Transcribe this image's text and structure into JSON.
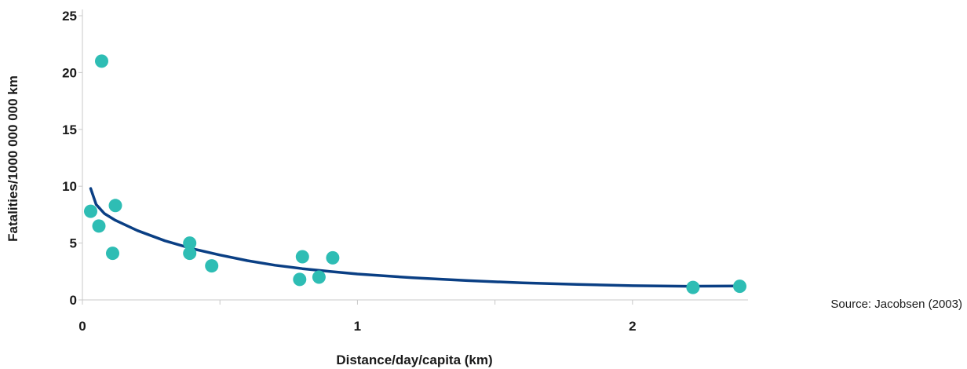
{
  "chart_data": {
    "type": "scatter",
    "xlabel": "Distance/day/capita (km)",
    "ylabel": "Fatalities/1000 000 000 km",
    "xlim": [
      0,
      2.42
    ],
    "ylim": [
      0,
      25
    ],
    "x_ticks": [
      0,
      1,
      2
    ],
    "x_tick_labels": [
      "0",
      "1",
      "2"
    ],
    "x_minor_ticks": [
      0.5,
      1.5
    ],
    "y_ticks": [
      0,
      5,
      10,
      15,
      20,
      25
    ],
    "y_tick_labels": [
      "0",
      "5",
      "10",
      "15",
      "20",
      "25"
    ],
    "grid": false,
    "source": "Source: Jacobsen (2003)",
    "colors": {
      "points": "#2ebdb4",
      "curve": "#0a3f84",
      "axis": "#c8c8c8",
      "text": "#1a1a1a"
    },
    "series": [
      {
        "type": "scatter",
        "points": [
          {
            "x": 0.03,
            "y": 7.8
          },
          {
            "x": 0.06,
            "y": 6.5
          },
          {
            "x": 0.07,
            "y": 21.0
          },
          {
            "x": 0.11,
            "y": 4.1
          },
          {
            "x": 0.12,
            "y": 8.3
          },
          {
            "x": 0.39,
            "y": 5.0
          },
          {
            "x": 0.39,
            "y": 4.1
          },
          {
            "x": 0.47,
            "y": 3.0
          },
          {
            "x": 0.79,
            "y": 1.8
          },
          {
            "x": 0.8,
            "y": 3.8
          },
          {
            "x": 0.86,
            "y": 2.0
          },
          {
            "x": 0.91,
            "y": 3.7
          },
          {
            "x": 2.22,
            "y": 1.1
          },
          {
            "x": 2.39,
            "y": 1.2
          }
        ]
      },
      {
        "type": "line",
        "points": [
          {
            "x": 0.03,
            "y": 9.8
          },
          {
            "x": 0.05,
            "y": 8.4
          },
          {
            "x": 0.08,
            "y": 7.6
          },
          {
            "x": 0.12,
            "y": 7.0
          },
          {
            "x": 0.2,
            "y": 6.1
          },
          {
            "x": 0.3,
            "y": 5.2
          },
          {
            "x": 0.4,
            "y": 4.5
          },
          {
            "x": 0.5,
            "y": 3.95
          },
          {
            "x": 0.6,
            "y": 3.45
          },
          {
            "x": 0.7,
            "y": 3.05
          },
          {
            "x": 0.8,
            "y": 2.75
          },
          {
            "x": 0.9,
            "y": 2.5
          },
          {
            "x": 1.0,
            "y": 2.28
          },
          {
            "x": 1.2,
            "y": 1.95
          },
          {
            "x": 1.4,
            "y": 1.7
          },
          {
            "x": 1.6,
            "y": 1.5
          },
          {
            "x": 1.8,
            "y": 1.36
          },
          {
            "x": 2.0,
            "y": 1.25
          },
          {
            "x": 2.2,
            "y": 1.2
          },
          {
            "x": 2.4,
            "y": 1.22
          }
        ]
      }
    ]
  }
}
